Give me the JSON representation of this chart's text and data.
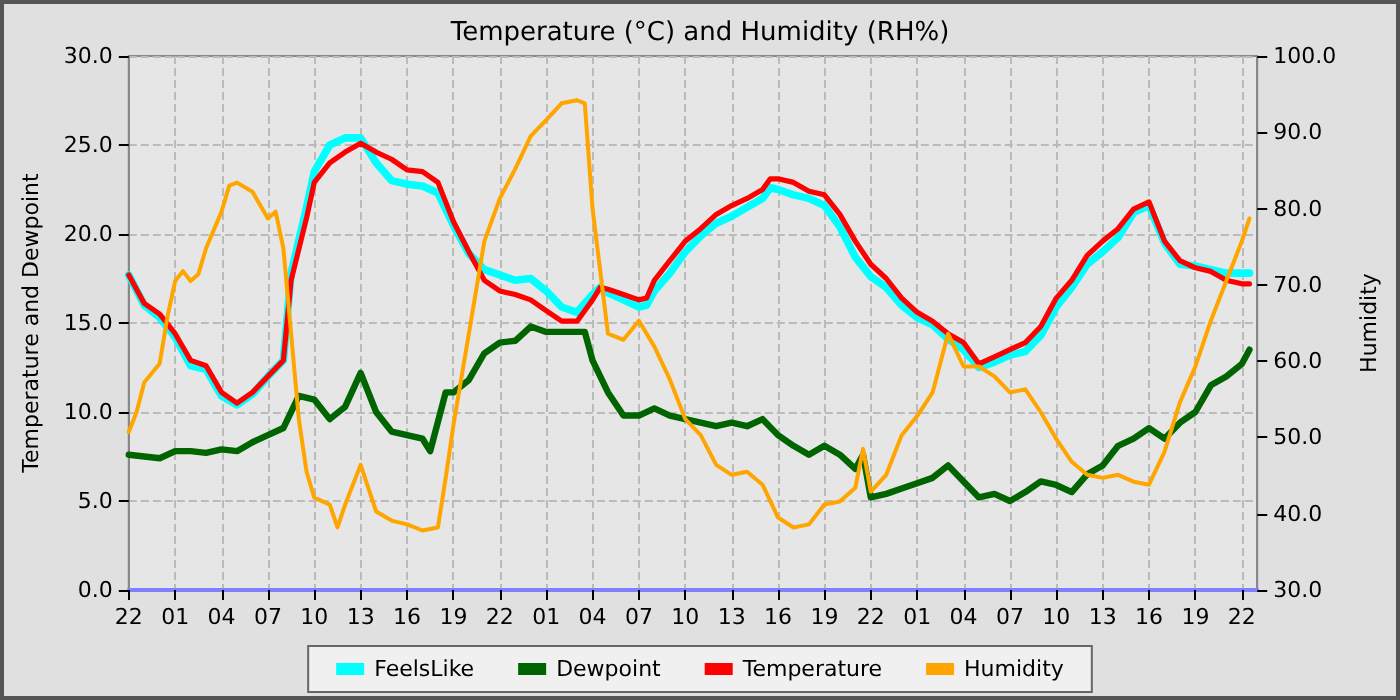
{
  "chart_data": {
    "type": "line",
    "title": "Temperature (°C) and Humidity (RH%)",
    "ylabel": "Temperature and Dewpoint",
    "y2label": "Humidity",
    "categories": [
      "22",
      null,
      null,
      null,
      null,
      null,
      "01",
      null,
      null,
      null,
      null,
      null,
      "04",
      null,
      null,
      null,
      null,
      null,
      "07",
      null,
      null,
      null,
      null,
      null,
      "10",
      null,
      null,
      null,
      null,
      null,
      "13",
      null,
      null,
      null,
      null,
      null,
      "16",
      null,
      null,
      null,
      null,
      null,
      "19",
      null,
      null,
      null,
      null,
      null,
      "22",
      null,
      null,
      null,
      null,
      null,
      "01",
      null,
      null,
      null,
      null,
      null,
      "04",
      null,
      null,
      null,
      null,
      null,
      "07",
      null,
      null,
      null,
      null,
      null,
      "10",
      null,
      null,
      null,
      null,
      null,
      "13",
      null,
      null,
      null,
      null,
      null,
      "16",
      null,
      null,
      null,
      null,
      null,
      "19",
      null,
      null,
      null,
      null,
      null,
      "22",
      null,
      null,
      null,
      null,
      null,
      "01",
      null,
      null,
      null,
      null,
      null,
      "04",
      null,
      null,
      null,
      null,
      null,
      "07",
      null,
      null,
      null,
      null,
      null,
      "10",
      null,
      null,
      null,
      null,
      null,
      "13",
      null,
      null,
      null,
      null,
      null,
      "16",
      null,
      null,
      null,
      null,
      null,
      "19",
      null,
      null,
      null,
      null,
      null,
      "22",
      null,
      null
    ],
    "ylim": [
      0,
      30
    ],
    "yticks": [
      {
        "value": 0,
        "label": "0.0"
      },
      {
        "value": 5,
        "label": "5.0"
      },
      {
        "value": 10,
        "label": "10.0"
      },
      {
        "value": 15,
        "label": "15.0"
      },
      {
        "value": 20,
        "label": "20.0"
      },
      {
        "value": 25,
        "label": "25.0"
      },
      {
        "value": 30,
        "label": "30.0"
      }
    ],
    "y2lim": [
      30,
      100
    ],
    "y2ticks": [
      {
        "value": 30,
        "label": "30.0"
      },
      {
        "value": 40,
        "label": "40.0"
      },
      {
        "value": 50,
        "label": "50.0"
      },
      {
        "value": 60,
        "label": "60.0"
      },
      {
        "value": 70,
        "label": "70.0"
      },
      {
        "value": 80,
        "label": "80.0"
      },
      {
        "value": 90,
        "label": "90.0"
      },
      {
        "value": 100,
        "label": "100.0"
      }
    ],
    "grid": true,
    "legend": "bottom",
    "line_style": "solid",
    "series": [
      {
        "name": "FeelsLike",
        "color": "#00ffff",
        "values": [
          17.7,
          null,
          16.0,
          null,
          15.3,
          null,
          14.2,
          null,
          12.6,
          null,
          12.4,
          null,
          10.9,
          null,
          10.4,
          null,
          11.0,
          null,
          12.0,
          null,
          12.9,
          17.8,
          null,
          21.5,
          23.5,
          null,
          25.0,
          null,
          25.4,
          null,
          25.4,
          null,
          24.0,
          null,
          23.0,
          null,
          22.8,
          null,
          22.7,
          null,
          22.3,
          null,
          20.5,
          null,
          18.9,
          null,
          18.0,
          null,
          17.7,
          null,
          17.4,
          null,
          17.5,
          null,
          16.8,
          null,
          15.9,
          null,
          15.6,
          null,
          16.6,
          17.0,
          16.7,
          null,
          16.3,
          null,
          15.9,
          16.0,
          16.8,
          null,
          17.8,
          null,
          19.0,
          null,
          19.9,
          null,
          20.6,
          null,
          21.0,
          null,
          21.5,
          null,
          22.0,
          22.6,
          22.5,
          null,
          22.2,
          null,
          22.0,
          null,
          21.6,
          null,
          20.4,
          null,
          18.7,
          null,
          17.6,
          null,
          17.0,
          null,
          16.0,
          null,
          15.3,
          null,
          14.9,
          null,
          14.1,
          null,
          13.5,
          null,
          12.5,
          null,
          12.8,
          null,
          13.2,
          null,
          13.4,
          null,
          14.3,
          null,
          15.9,
          null,
          17.0,
          null,
          18.3,
          null,
          19.0,
          null,
          19.8,
          null,
          21.2,
          null,
          21.6,
          null,
          19.5,
          null,
          18.3,
          null,
          18.2,
          null,
          18.0,
          null,
          17.8,
          null,
          17.8,
          17.8,
          null
        ]
      },
      {
        "name": "Dewpoint",
        "color": "#006400",
        "values": [
          7.6,
          null,
          7.5,
          null,
          7.4,
          null,
          7.8,
          null,
          7.8,
          null,
          7.7,
          null,
          7.9,
          null,
          7.8,
          null,
          8.3,
          null,
          8.7,
          null,
          9.1,
          null,
          10.9,
          null,
          10.7,
          null,
          9.6,
          null,
          10.3,
          null,
          12.2,
          null,
          10.0,
          null,
          8.9,
          null,
          8.7,
          null,
          8.5,
          7.8,
          null,
          11.1,
          11.1,
          null,
          11.8,
          null,
          13.3,
          null,
          13.9,
          null,
          14.0,
          null,
          14.8,
          null,
          14.5,
          null,
          14.5,
          null,
          14.5,
          14.5,
          12.9,
          null,
          11.1,
          null,
          9.8,
          null,
          9.8,
          null,
          10.2,
          null,
          9.8,
          null,
          9.6,
          null,
          9.4,
          null,
          9.2,
          null,
          9.4,
          null,
          9.2,
          null,
          9.6,
          null,
          8.7,
          null,
          8.1,
          null,
          7.6,
          null,
          8.1,
          null,
          7.6,
          null,
          6.8,
          7.6,
          5.2,
          null,
          5.4,
          null,
          5.7,
          null,
          6.0,
          null,
          6.3,
          null,
          7.0,
          null,
          6.1,
          null,
          5.2,
          null,
          5.4,
          null,
          5.0,
          null,
          5.5,
          null,
          6.1,
          null,
          5.9,
          null,
          5.5,
          null,
          6.5,
          null,
          7.0,
          null,
          8.1,
          null,
          8.5,
          null,
          9.1,
          null,
          8.5,
          null,
          9.4,
          null,
          10.0,
          null,
          11.5,
          null,
          12.0,
          null,
          12.7,
          13.5,
          null
        ]
      },
      {
        "name": "Temperature",
        "color": "#ff0000",
        "values": [
          17.7,
          null,
          16.1,
          null,
          15.5,
          null,
          14.4,
          null,
          12.9,
          null,
          12.6,
          null,
          11.1,
          null,
          10.5,
          null,
          11.1,
          null,
          12.0,
          null,
          12.9,
          17.4,
          null,
          20.9,
          22.9,
          null,
          24.0,
          null,
          24.6,
          null,
          25.1,
          null,
          24.6,
          null,
          24.2,
          null,
          23.6,
          null,
          23.5,
          null,
          22.9,
          null,
          20.7,
          null,
          19.0,
          null,
          17.4,
          null,
          16.8,
          null,
          16.6,
          null,
          16.3,
          null,
          15.7,
          null,
          15.1,
          null,
          15.1,
          null,
          16.3,
          17.0,
          16.9,
          null,
          16.6,
          null,
          16.3,
          16.4,
          17.4,
          null,
          18.5,
          null,
          19.6,
          null,
          20.3,
          null,
          21.1,
          null,
          21.6,
          null,
          22.0,
          null,
          22.5,
          23.1,
          23.1,
          null,
          22.9,
          null,
          22.4,
          null,
          22.2,
          null,
          21.1,
          null,
          19.6,
          null,
          18.3,
          null,
          17.5,
          null,
          16.4,
          null,
          15.6,
          null,
          15.1,
          null,
          14.4,
          null,
          13.9,
          null,
          12.7,
          null,
          13.1,
          null,
          13.5,
          null,
          13.9,
          null,
          14.8,
          null,
          16.4,
          null,
          17.4,
          null,
          18.8,
          null,
          19.6,
          null,
          20.3,
          null,
          21.4,
          null,
          21.8,
          null,
          19.6,
          null,
          18.5,
          null,
          18.1,
          null,
          17.9,
          null,
          17.4,
          null,
          17.2,
          17.2,
          null
        ]
      },
      {
        "name": "Humidity",
        "color": "#ffa500",
        "axis": "y2",
        "values": [
          50.7,
          53.3,
          57.2,
          null,
          59.7,
          65.8,
          70.5,
          71.8,
          70.5,
          71.4,
          74.8,
          null,
          79.6,
          83.0,
          83.4,
          null,
          82.2,
          null,
          78.7,
          79.6,
          74.8,
          63.6,
          52.4,
          45.5,
          42.1,
          null,
          41.2,
          38.2,
          41.2,
          null,
          46.4,
          null,
          40.3,
          null,
          39.1,
          null,
          38.6,
          null,
          37.8,
          null,
          38.2,
          44.7,
          51.6,
          null,
          63.6,
          null,
          75.7,
          null,
          81.3,
          null,
          85.2,
          null,
          89.5,
          null,
          91.6,
          null,
          93.8,
          null,
          94.2,
          93.8,
          80.0,
          null,
          63.6,
          null,
          62.8,
          null,
          65.3,
          null,
          61.9,
          null,
          57.6,
          null,
          52.4,
          null,
          50.3,
          null,
          46.4,
          null,
          45.1,
          null,
          45.5,
          null,
          43.8,
          null,
          39.5,
          null,
          38.2,
          null,
          38.6,
          null,
          41.2,
          null,
          41.6,
          null,
          43.4,
          48.5,
          42.9,
          null,
          45.1,
          null,
          50.3,
          null,
          52.8,
          null,
          55.9,
          null,
          63.6,
          null,
          59.3,
          null,
          59.3,
          null,
          58.0,
          null,
          55.9,
          null,
          56.3,
          null,
          53.3,
          null,
          49.8,
          null,
          46.8,
          null,
          45.1,
          null,
          44.7,
          null,
          45.1,
          null,
          44.2,
          null,
          43.8,
          null,
          48.1,
          null,
          54.6,
          null,
          59.3,
          null,
          65.3,
          null,
          70.5,
          null,
          75.7,
          78.7,
          null
        ]
      }
    ]
  }
}
